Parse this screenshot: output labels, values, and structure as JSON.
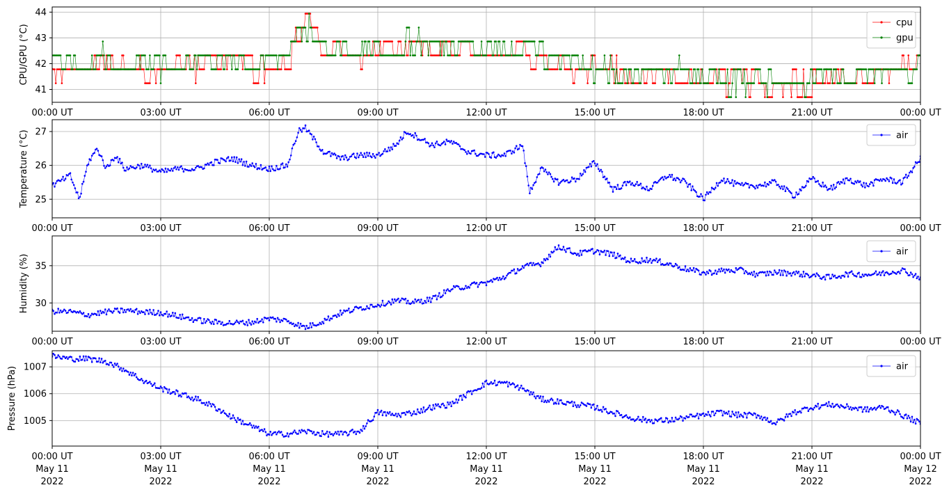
{
  "chart_data": [
    {
      "type": "line",
      "ylabel": "CPU/GPU (°C)",
      "ylim": [
        40.5,
        44.2
      ],
      "yticks": [
        "41",
        "42",
        "43",
        "44"
      ],
      "xticks": [
        "00:00 UT",
        "03:00 UT",
        "06:00 UT",
        "09:00 UT",
        "12:00 UT",
        "15:00 UT",
        "18:00 UT",
        "21:00 UT",
        "00:00 UT"
      ],
      "xlim": [
        "2022-05-11 00:00",
        "2022-05-12 00:00"
      ],
      "grid": true,
      "legend": "top-right",
      "series": [
        {
          "name": "cpu",
          "color": "#ff0000",
          "x_hours": [
            0,
            0.5,
            1,
            1.5,
            2,
            2.5,
            3,
            3.5,
            4,
            4.5,
            5,
            5.5,
            6,
            6.5,
            7,
            7.5,
            8,
            8.5,
            9,
            9.5,
            10,
            10.5,
            11,
            11.5,
            12,
            12.5,
            13,
            13.5,
            14,
            14.5,
            15,
            15.5,
            16,
            16.5,
            17,
            17.5,
            18,
            18.5,
            19,
            19.5,
            20,
            20.5,
            21,
            21.5,
            22,
            22.5,
            23,
            23.5,
            24
          ],
          "values": [
            41.8,
            41.6,
            42.0,
            42.1,
            41.9,
            41.8,
            41.8,
            41.9,
            41.9,
            42.0,
            42.1,
            41.9,
            41.9,
            42.3,
            43.6,
            42.6,
            42.3,
            42.4,
            42.5,
            42.5,
            42.6,
            42.6,
            42.4,
            42.4,
            42.5,
            42.5,
            42.5,
            42.3,
            42.0,
            41.8,
            41.8,
            41.7,
            41.4,
            41.5,
            41.6,
            41.5,
            41.3,
            41.3,
            41.2,
            41.2,
            41.1,
            41.2,
            41.3,
            41.3,
            41.3,
            41.5,
            41.6,
            41.7,
            41.9
          ]
        },
        {
          "name": "gpu",
          "color": "#008000",
          "x_hours": [
            0,
            0.5,
            1,
            1.5,
            2,
            2.5,
            3,
            3.5,
            4,
            4.5,
            5,
            5.5,
            6,
            6.5,
            7,
            7.5,
            8,
            8.5,
            9,
            9.5,
            10,
            10.5,
            11,
            11.5,
            12,
            12.5,
            13,
            13.5,
            14,
            14.5,
            15,
            15.5,
            16,
            16.5,
            17,
            17.5,
            18,
            18.5,
            19,
            19.5,
            20,
            20.5,
            21,
            21.5,
            22,
            22.5,
            23,
            23.5,
            24
          ],
          "values": [
            41.9,
            41.8,
            42.2,
            42.3,
            42.0,
            41.9,
            41.9,
            42.0,
            42.0,
            42.1,
            42.2,
            42.0,
            42.0,
            42.5,
            43.4,
            42.7,
            42.5,
            42.6,
            42.7,
            42.7,
            42.8,
            42.8,
            42.6,
            42.6,
            42.6,
            42.6,
            42.6,
            42.4,
            42.1,
            41.9,
            41.9,
            41.8,
            41.5,
            41.6,
            41.7,
            41.6,
            41.4,
            41.4,
            41.3,
            41.3,
            41.2,
            41.3,
            41.4,
            41.4,
            41.4,
            41.6,
            41.7,
            41.8,
            42.1
          ]
        }
      ]
    },
    {
      "type": "line",
      "ylabel": "Temperature (°C)",
      "ylim": [
        24.45,
        27.35
      ],
      "yticks": [
        "25",
        "26",
        "27"
      ],
      "xticks": [
        "00:00 UT",
        "03:00 UT",
        "06:00 UT",
        "09:00 UT",
        "12:00 UT",
        "15:00 UT",
        "18:00 UT",
        "21:00 UT",
        "00:00 UT"
      ],
      "xlim": [
        "2022-05-11 00:00",
        "2022-05-12 00:00"
      ],
      "grid": true,
      "legend": "top-right",
      "series": [
        {
          "name": "air",
          "color": "#0000ff",
          "x_hours": [
            0,
            0.5,
            0.75,
            1,
            1.25,
            1.5,
            1.75,
            2,
            2.5,
            3,
            3.5,
            4,
            4.5,
            5,
            5.5,
            6,
            6.5,
            6.8,
            7,
            7.5,
            8,
            8.5,
            9,
            9.5,
            9.8,
            10,
            10.5,
            11,
            11.5,
            12,
            12.5,
            13,
            13.2,
            13.5,
            14,
            14.5,
            15,
            15.5,
            16,
            16.5,
            17,
            17.5,
            18,
            18.5,
            19,
            19.5,
            20,
            20.5,
            21,
            21.5,
            22,
            22.5,
            23,
            23.5,
            24
          ],
          "values": [
            25.4,
            25.7,
            25.0,
            26.1,
            26.5,
            25.9,
            26.3,
            25.9,
            26.0,
            25.8,
            25.9,
            25.9,
            26.1,
            26.2,
            26.0,
            25.9,
            26.0,
            27.0,
            27.1,
            26.4,
            26.2,
            26.3,
            26.3,
            26.6,
            27.0,
            26.9,
            26.6,
            26.7,
            26.4,
            26.3,
            26.3,
            26.6,
            25.2,
            25.9,
            25.5,
            25.6,
            26.1,
            25.3,
            25.5,
            25.3,
            25.7,
            25.5,
            25.0,
            25.6,
            25.4,
            25.4,
            25.5,
            25.1,
            25.6,
            25.3,
            25.6,
            25.4,
            25.6,
            25.5,
            26.2
          ]
        }
      ]
    },
    {
      "type": "line",
      "ylabel": "Humidity (%)",
      "ylim": [
        26.2,
        39.0
      ],
      "yticks": [
        "30",
        "35"
      ],
      "xticks": [
        "00:00 UT",
        "03:00 UT",
        "06:00 UT",
        "09:00 UT",
        "12:00 UT",
        "15:00 UT",
        "18:00 UT",
        "21:00 UT",
        "00:00 UT"
      ],
      "xlim": [
        "2022-05-11 00:00",
        "2022-05-12 00:00"
      ],
      "grid": true,
      "legend": "top-right",
      "series": [
        {
          "name": "air",
          "color": "#0000ff",
          "x_hours": [
            0,
            0.5,
            1,
            1.5,
            2,
            2.5,
            3,
            3.5,
            4,
            4.5,
            5,
            5.5,
            6,
            6.5,
            7,
            7.5,
            8,
            8.5,
            9,
            9.5,
            10,
            10.5,
            11,
            11.5,
            12,
            12.5,
            13,
            13.5,
            14,
            14.5,
            15,
            15.5,
            16,
            16.5,
            17,
            17.5,
            18,
            18.5,
            19,
            19.5,
            20,
            20.5,
            21,
            21.5,
            22,
            22.5,
            23,
            23.5,
            24
          ],
          "values": [
            28.9,
            28.8,
            28.4,
            28.8,
            29.0,
            28.8,
            28.7,
            28.2,
            27.7,
            27.4,
            27.3,
            27.4,
            27.9,
            27.6,
            26.7,
            27.6,
            28.7,
            29.3,
            29.8,
            30.3,
            30.1,
            30.5,
            31.8,
            32.3,
            32.7,
            33.5,
            34.8,
            35.3,
            37.6,
            36.6,
            37.0,
            36.5,
            35.6,
            35.8,
            35.3,
            34.6,
            34.0,
            34.3,
            34.4,
            33.8,
            34.1,
            34.0,
            33.7,
            33.4,
            33.9,
            33.8,
            34.0,
            34.4,
            33.4
          ]
        }
      ]
    },
    {
      "type": "line",
      "ylabel": "Pressure (hPa)",
      "ylim": [
        1004.05,
        1007.6
      ],
      "yticks": [
        "1005",
        "1006",
        "1007"
      ],
      "xticks": [
        "00:00 UT",
        "03:00 UT",
        "06:00 UT",
        "09:00 UT",
        "12:00 UT",
        "15:00 UT",
        "18:00 UT",
        "21:00 UT",
        "00:00 UT"
      ],
      "xticks_date": [
        "May 11",
        "May 11",
        "May 11",
        "May 11",
        "May 11",
        "May 11",
        "May 11",
        "May 11",
        "May 12"
      ],
      "xticks_year": [
        "2022",
        "2022",
        "2022",
        "2022",
        "2022",
        "2022",
        "2022",
        "2022",
        "2022"
      ],
      "xlim": [
        "2022-05-11 00:00",
        "2022-05-12 00:00"
      ],
      "grid": true,
      "legend": "top-right",
      "series": [
        {
          "name": "air",
          "color": "#0000ff",
          "x_hours": [
            0,
            0.5,
            1,
            1.5,
            2,
            2.5,
            3,
            3.5,
            4,
            4.5,
            5,
            5.5,
            6,
            6.5,
            7,
            7.5,
            8,
            8.5,
            9,
            9.5,
            10,
            10.5,
            11,
            11.5,
            12,
            12.5,
            13,
            13.5,
            14,
            14.5,
            15,
            15.5,
            16,
            16.5,
            17,
            17.5,
            18,
            18.5,
            19,
            19.5,
            20,
            20.5,
            21,
            21.5,
            22,
            22.5,
            23,
            23.5,
            24
          ],
          "values": [
            1007.4,
            1007.3,
            1007.3,
            1007.2,
            1006.9,
            1006.5,
            1006.2,
            1006.0,
            1005.8,
            1005.5,
            1005.1,
            1004.8,
            1004.5,
            1004.5,
            1004.6,
            1004.5,
            1004.5,
            1004.6,
            1005.3,
            1005.2,
            1005.3,
            1005.5,
            1005.6,
            1006.0,
            1006.4,
            1006.4,
            1006.2,
            1005.8,
            1005.7,
            1005.6,
            1005.5,
            1005.3,
            1005.1,
            1005.0,
            1005.0,
            1005.1,
            1005.2,
            1005.3,
            1005.2,
            1005.2,
            1004.9,
            1005.3,
            1005.5,
            1005.6,
            1005.5,
            1005.4,
            1005.5,
            1005.2,
            1004.9
          ]
        }
      ]
    }
  ]
}
